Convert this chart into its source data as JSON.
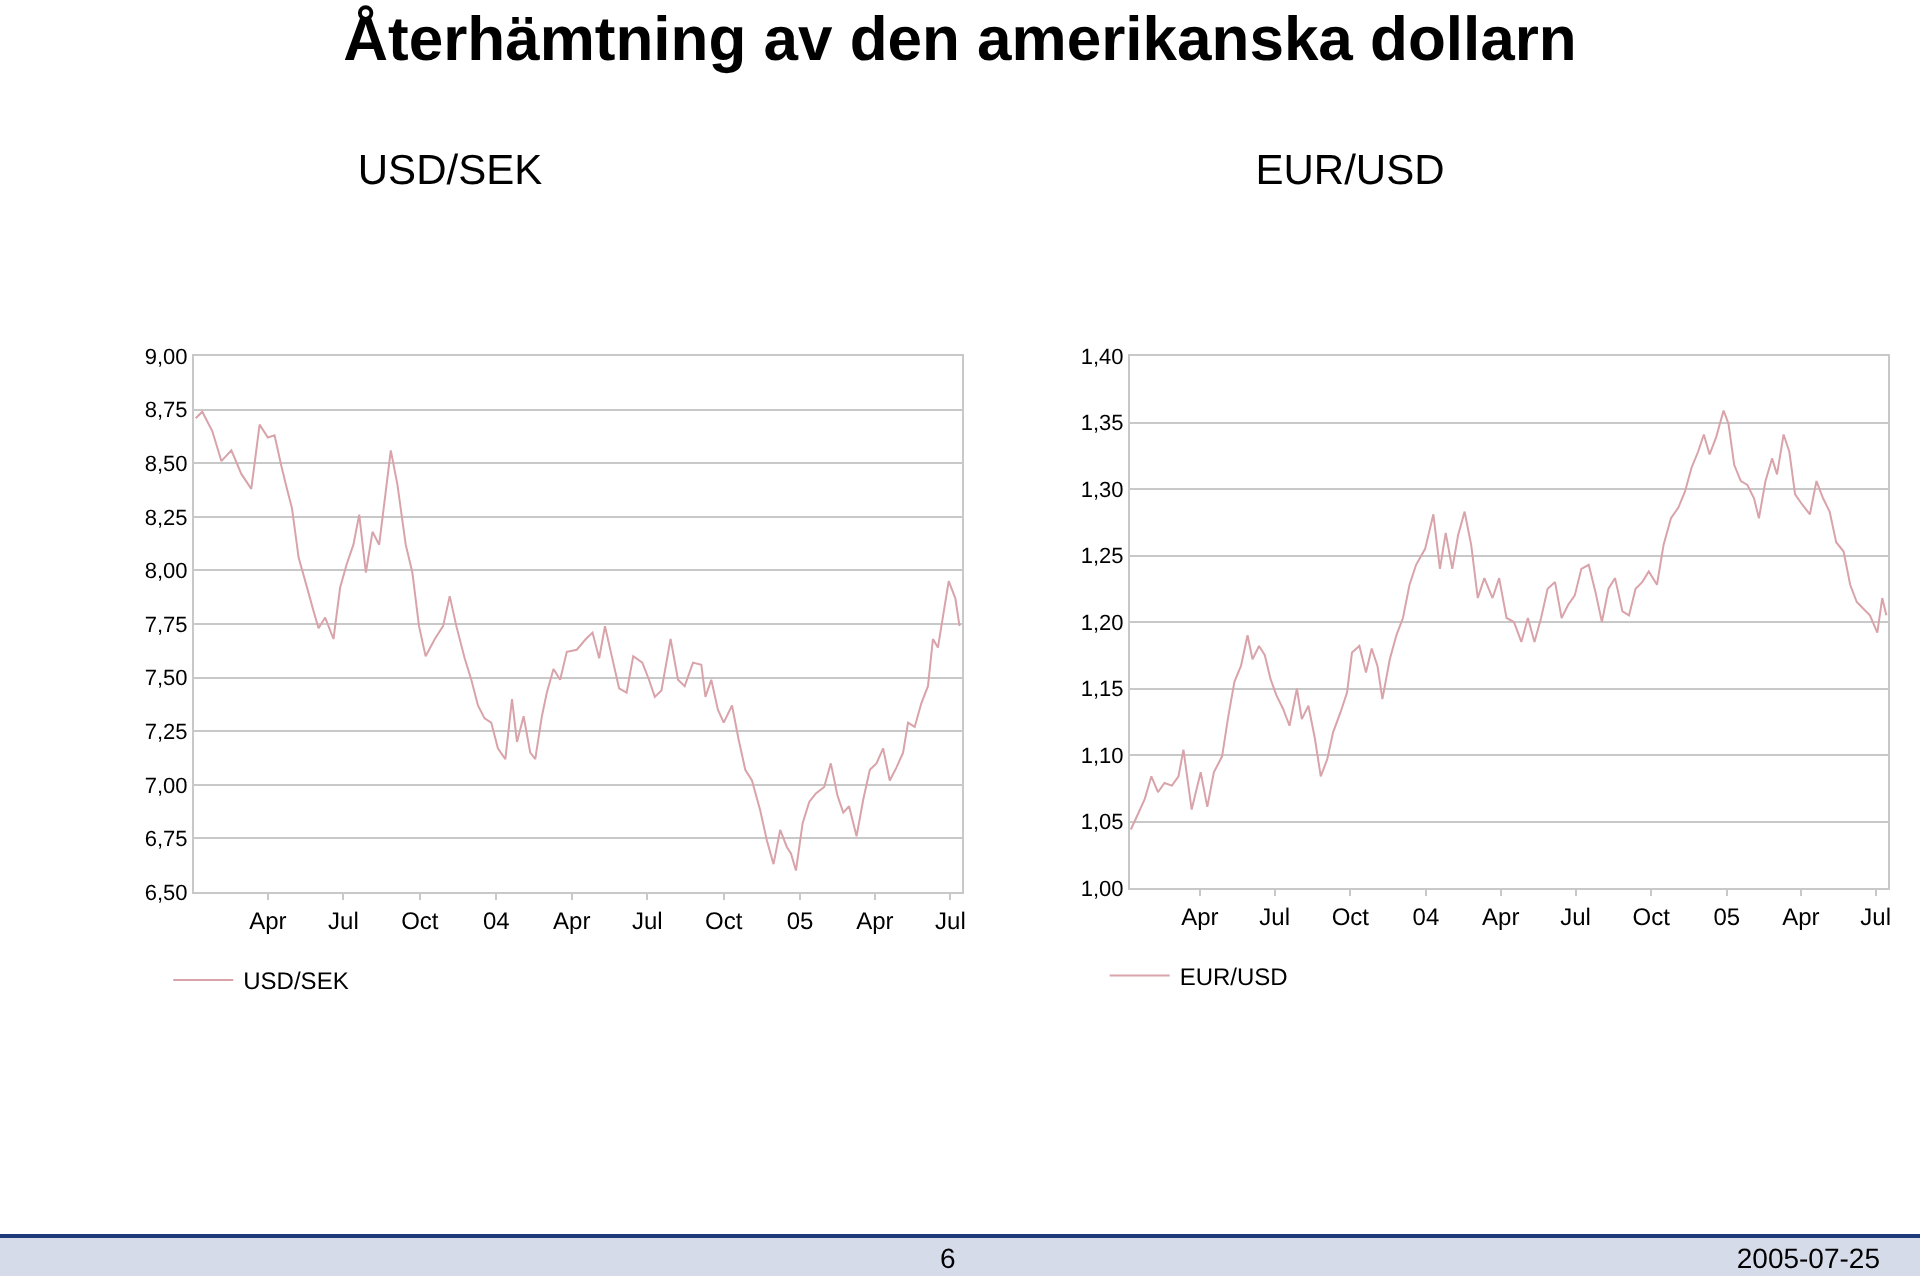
{
  "chart_data": [
    {
      "type": "line",
      "title": "Återhämtning av den amerikanska dollarn",
      "subtitle": "USD/SEK",
      "x": [
        "2003-01-04",
        "2003-01-12",
        "2003-01-24",
        "2003-02-04",
        "2003-02-16",
        "2003-02-28",
        "2003-03-12",
        "2003-03-22",
        "2003-04-01",
        "2003-04-09",
        "2003-04-17",
        "2003-04-24",
        "2003-04-30",
        "2003-05-08",
        "2003-05-16",
        "2003-05-26",
        "2003-06-01",
        "2003-06-09",
        "2003-06-19",
        "2003-06-27",
        "2003-07-05",
        "2003-07-13",
        "2003-07-20",
        "2003-07-28",
        "2003-08-05",
        "2003-08-13",
        "2003-08-21",
        "2003-08-27",
        "2003-09-04",
        "2003-09-14",
        "2003-09-22",
        "2003-09-30",
        "2003-10-08",
        "2003-10-19",
        "2003-10-29",
        "2003-11-06",
        "2003-11-14",
        "2003-11-24",
        "2003-12-02",
        "2003-12-10",
        "2003-12-18",
        "2003-12-26",
        "2004-01-03",
        "2004-01-12",
        "2004-01-20",
        "2004-01-26",
        "2004-02-03",
        "2004-02-11",
        "2004-02-17",
        "2004-02-25",
        "2004-03-02",
        "2004-03-10",
        "2004-03-18",
        "2004-03-26",
        "2004-04-07",
        "2004-04-18",
        "2004-04-26",
        "2004-05-04",
        "2004-05-11",
        "2004-05-18",
        "2004-05-28",
        "2004-06-06",
        "2004-06-14",
        "2004-06-25",
        "2004-07-03",
        "2004-07-10",
        "2004-07-18",
        "2004-07-29",
        "2004-08-07",
        "2004-08-15",
        "2004-08-25",
        "2004-09-04",
        "2004-09-09",
        "2004-09-16",
        "2004-09-24",
        "2004-10-01",
        "2004-10-11",
        "2004-10-19",
        "2004-10-27",
        "2004-11-04",
        "2004-11-14",
        "2004-11-22",
        "2004-11-30",
        "2004-12-08",
        "2004-12-16",
        "2004-12-21",
        "2004-12-27",
        "2005-01-04",
        "2005-01-12",
        "2005-01-20",
        "2005-01-30",
        "2005-02-07",
        "2005-02-15",
        "2005-02-22",
        "2005-03-01",
        "2005-03-10",
        "2005-03-18",
        "2005-03-26",
        "2005-04-03",
        "2005-04-11",
        "2005-04-19",
        "2005-04-27",
        "2005-05-05",
        "2005-05-11",
        "2005-05-19",
        "2005-05-27",
        "2005-06-04",
        "2005-06-10",
        "2005-06-16",
        "2005-06-21",
        "2005-06-29",
        "2005-07-07",
        "2005-07-12"
      ],
      "series": [
        {
          "name": "USD/SEK",
          "color": "#d9a3aa",
          "values": [
            8.71,
            8.74,
            8.65,
            8.51,
            8.56,
            8.45,
            8.38,
            8.68,
            8.62,
            8.63,
            8.49,
            8.38,
            8.29,
            8.06,
            7.95,
            7.81,
            7.73,
            7.78,
            7.68,
            7.92,
            8.03,
            8.12,
            8.26,
            7.99,
            8.18,
            8.12,
            8.37,
            8.56,
            8.4,
            8.12,
            7.99,
            7.74,
            7.6,
            7.68,
            7.74,
            7.88,
            7.74,
            7.59,
            7.49,
            7.37,
            7.31,
            7.29,
            7.17,
            7.12,
            7.4,
            7.2,
            7.32,
            7.15,
            7.12,
            7.32,
            7.43,
            7.54,
            7.49,
            7.62,
            7.63,
            7.68,
            7.71,
            7.59,
            7.74,
            7.62,
            7.45,
            7.43,
            7.6,
            7.57,
            7.49,
            7.41,
            7.44,
            7.68,
            7.49,
            7.46,
            7.57,
            7.56,
            7.41,
            7.49,
            7.35,
            7.29,
            7.37,
            7.21,
            7.07,
            7.02,
            6.88,
            6.74,
            6.63,
            6.79,
            6.71,
            6.68,
            6.6,
            6.82,
            6.92,
            6.96,
            6.99,
            7.1,
            6.95,
            6.87,
            6.9,
            6.76,
            6.93,
            7.07,
            7.1,
            7.17,
            7.02,
            7.08,
            7.15,
            7.29,
            7.27,
            7.38,
            7.46,
            7.68,
            7.64,
            7.76,
            7.95,
            7.87,
            7.74
          ]
        }
      ],
      "xlim": [
        "2003-01-02",
        "2005-07-15"
      ],
      "xticks": [
        {
          "value": "2003-04-01",
          "label": "Apr"
        },
        {
          "value": "2003-07-01",
          "label": "Jul"
        },
        {
          "value": "2003-10-01",
          "label": "Oct"
        },
        {
          "value": "2004-01-01",
          "label": "04"
        },
        {
          "value": "2004-04-01",
          "label": "Apr"
        },
        {
          "value": "2004-07-01",
          "label": "Jul"
        },
        {
          "value": "2004-10-01",
          "label": "Oct"
        },
        {
          "value": "2005-01-01",
          "label": "05"
        },
        {
          "value": "2005-04-01",
          "label": "Apr"
        },
        {
          "value": "2005-07-01",
          "label": "Jul"
        }
      ],
      "ylim": [
        6.5,
        9
      ],
      "yticks": [
        {
          "value": 6.5,
          "label": "6,50"
        },
        {
          "value": 6.75,
          "label": "6,75"
        },
        {
          "value": 7,
          "label": "7,00"
        },
        {
          "value": 7.25,
          "label": "7,25"
        },
        {
          "value": 7.5,
          "label": "7,50"
        },
        {
          "value": 7.75,
          "label": "7,75"
        },
        {
          "value": 8,
          "label": "8,00"
        },
        {
          "value": 8.25,
          "label": "8,25"
        },
        {
          "value": 8.5,
          "label": "8,50"
        },
        {
          "value": 8.75,
          "label": "8,75"
        },
        {
          "value": 9,
          "label": "9,00"
        }
      ],
      "grid": "y",
      "legend": "bottom left",
      "marker": "none",
      "line_style": "solid"
    },
    {
      "type": "line",
      "title": "EUR/USD",
      "x": [
        "2003-01-07",
        "2003-01-16",
        "2003-01-24",
        "2003-02-01",
        "2003-02-09",
        "2003-02-17",
        "2003-02-26",
        "2003-03-06",
        "2003-03-12",
        "2003-03-22",
        "2003-04-02",
        "2003-04-10",
        "2003-04-18",
        "2003-04-28",
        "2003-05-05",
        "2003-05-13",
        "2003-05-21",
        "2003-05-29",
        "2003-06-04",
        "2003-06-12",
        "2003-06-19",
        "2003-06-26",
        "2003-07-03",
        "2003-07-11",
        "2003-07-19",
        "2003-07-28",
        "2003-08-03",
        "2003-08-11",
        "2003-08-19",
        "2003-08-26",
        "2003-09-03",
        "2003-09-10",
        "2003-09-19",
        "2003-09-27",
        "2003-10-03",
        "2003-10-12",
        "2003-10-20",
        "2003-10-27",
        "2003-11-03",
        "2003-11-09",
        "2003-11-18",
        "2003-11-26",
        "2003-12-04",
        "2003-12-12",
        "2003-12-20",
        "2003-12-31",
        "2004-01-10",
        "2004-01-18",
        "2004-01-25",
        "2004-02-02",
        "2004-02-09",
        "2004-02-17",
        "2004-02-25",
        "2004-03-04",
        "2004-03-12",
        "2004-03-22",
        "2004-03-30",
        "2004-04-08",
        "2004-04-17",
        "2004-04-26",
        "2004-05-04",
        "2004-05-12",
        "2004-05-20",
        "2004-05-28",
        "2004-06-06",
        "2004-06-14",
        "2004-06-22",
        "2004-06-30",
        "2004-07-08",
        "2004-07-17",
        "2004-07-25",
        "2004-08-02",
        "2004-08-10",
        "2004-08-18",
        "2004-08-27",
        "2004-09-04",
        "2004-09-12",
        "2004-09-20",
        "2004-09-28",
        "2004-10-08",
        "2004-10-16",
        "2004-10-25",
        "2004-11-03",
        "2004-11-11",
        "2004-11-19",
        "2004-11-27",
        "2004-12-04",
        "2004-12-11",
        "2004-12-19",
        "2004-12-28",
        "2005-01-03",
        "2005-01-10",
        "2005-01-18",
        "2005-01-26",
        "2005-02-03",
        "2005-02-09",
        "2005-02-17",
        "2005-02-25",
        "2005-03-03",
        "2005-03-11",
        "2005-03-18",
        "2005-03-25",
        "2005-04-03",
        "2005-04-12",
        "2005-04-20",
        "2005-04-28",
        "2005-05-06",
        "2005-05-14",
        "2005-05-23",
        "2005-05-31",
        "2005-06-08",
        "2005-06-16",
        "2005-06-24",
        "2005-07-03",
        "2005-07-09",
        "2005-07-14"
      ],
      "series": [
        {
          "name": "EUR/USD",
          "color": "#d9a3aa",
          "values": [
            1.044,
            1.056,
            1.067,
            1.084,
            1.072,
            1.079,
            1.077,
            1.084,
            1.104,
            1.059,
            1.087,
            1.061,
            1.087,
            1.099,
            1.127,
            1.155,
            1.167,
            1.19,
            1.172,
            1.182,
            1.175,
            1.157,
            1.145,
            1.135,
            1.122,
            1.15,
            1.127,
            1.137,
            1.112,
            1.084,
            1.097,
            1.117,
            1.132,
            1.147,
            1.177,
            1.182,
            1.162,
            1.18,
            1.167,
            1.142,
            1.172,
            1.19,
            1.203,
            1.228,
            1.243,
            1.255,
            1.281,
            1.24,
            1.267,
            1.24,
            1.265,
            1.283,
            1.258,
            1.218,
            1.233,
            1.218,
            1.233,
            1.203,
            1.2,
            1.185,
            1.203,
            1.185,
            1.203,
            1.225,
            1.23,
            1.203,
            1.213,
            1.22,
            1.24,
            1.243,
            1.223,
            1.2,
            1.225,
            1.233,
            1.208,
            1.205,
            1.225,
            1.23,
            1.238,
            1.228,
            1.258,
            1.278,
            1.286,
            1.298,
            1.316,
            1.328,
            1.341,
            1.326,
            1.339,
            1.359,
            1.349,
            1.318,
            1.306,
            1.303,
            1.293,
            1.278,
            1.306,
            1.323,
            1.311,
            1.341,
            1.328,
            1.296,
            1.288,
            1.281,
            1.306,
            1.293,
            1.283,
            1.26,
            1.253,
            1.228,
            1.215,
            1.21,
            1.205,
            1.192,
            1.218,
            1.205
          ]
        }
      ],
      "xlim": [
        "2003-01-06",
        "2005-07-16"
      ],
      "xticks": [
        {
          "value": "2003-04-01",
          "label": "Apr"
        },
        {
          "value": "2003-07-01",
          "label": "Jul"
        },
        {
          "value": "2003-10-01",
          "label": "Oct"
        },
        {
          "value": "2004-01-01",
          "label": "04"
        },
        {
          "value": "2004-04-01",
          "label": "Apr"
        },
        {
          "value": "2004-07-01",
          "label": "Jul"
        },
        {
          "value": "2004-10-01",
          "label": "Oct"
        },
        {
          "value": "2005-01-01",
          "label": "05"
        },
        {
          "value": "2005-04-01",
          "label": "Apr"
        },
        {
          "value": "2005-07-01",
          "label": "Jul"
        }
      ],
      "ylim": [
        1.0,
        1.4
      ],
      "yticks": [
        {
          "value": 1.0,
          "label": "1,00"
        },
        {
          "value": 1.05,
          "label": "1,05"
        },
        {
          "value": 1.1,
          "label": "1,10"
        },
        {
          "value": 1.15,
          "label": "1,15"
        },
        {
          "value": 1.2,
          "label": "1,20"
        },
        {
          "value": 1.25,
          "label": "1,25"
        },
        {
          "value": 1.3,
          "label": "1,30"
        },
        {
          "value": 1.35,
          "label": "1,35"
        },
        {
          "value": 1.4,
          "label": "1,40"
        }
      ],
      "grid": "y",
      "legend": "bottom left",
      "marker": "none",
      "line_style": "solid",
      "annotations": [
        "6",
        "2005-07-25"
      ]
    }
  ]
}
